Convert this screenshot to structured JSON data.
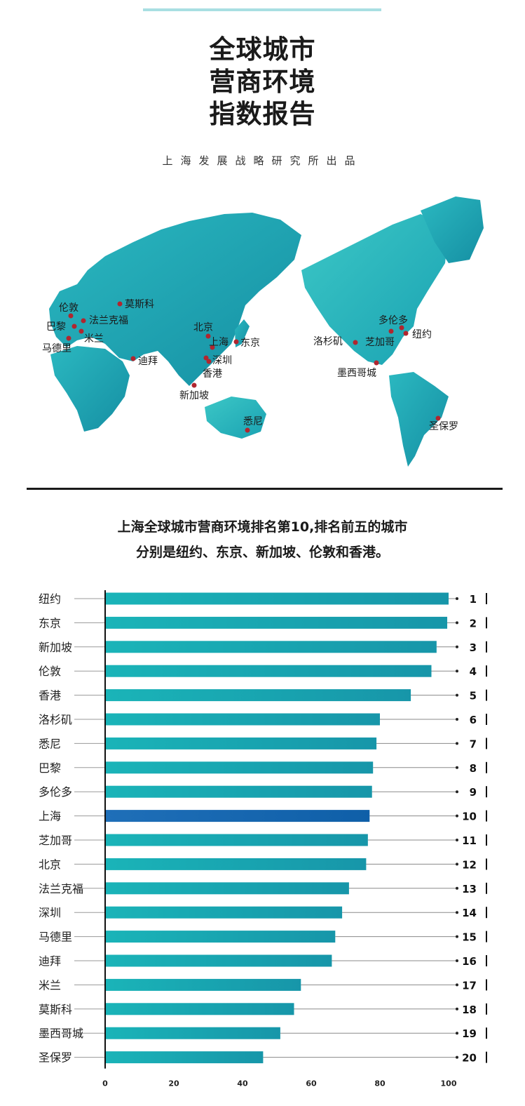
{
  "header": {
    "title_lines": [
      "全球城市",
      "营商环境",
      "指数报告"
    ],
    "subtitle": "上海发展战略研究所出品"
  },
  "map": {
    "cities": [
      {
        "name": "伦敦",
        "label_side": "above"
      },
      {
        "name": "巴黎",
        "label_side": "left"
      },
      {
        "name": "法兰克福",
        "label_side": "right"
      },
      {
        "name": "米兰",
        "label_side": "right"
      },
      {
        "name": "马德里",
        "label_side": "below"
      },
      {
        "name": "莫斯科",
        "label_side": "right"
      },
      {
        "name": "迪拜",
        "label_side": "right"
      },
      {
        "name": "北京",
        "label_side": "above"
      },
      {
        "name": "上海",
        "label_side": "right"
      },
      {
        "name": "东京",
        "label_side": "right"
      },
      {
        "name": "深圳",
        "label_side": "right"
      },
      {
        "name": "香港",
        "label_side": "below"
      },
      {
        "name": "新加坡",
        "label_side": "below"
      },
      {
        "name": "悉尼",
        "label_side": "above"
      },
      {
        "name": "洛杉矶",
        "label_side": "left"
      },
      {
        "name": "芝加哥",
        "label_side": "below"
      },
      {
        "name": "多伦多",
        "label_side": "above"
      },
      {
        "name": "纽约",
        "label_side": "right"
      },
      {
        "name": "墨西哥城",
        "label_side": "below"
      },
      {
        "name": "圣保罗",
        "label_side": "below"
      }
    ],
    "colors": {
      "land": "#1ba3b3",
      "land_light": "#2fc0c4",
      "dot": "#b0262f"
    }
  },
  "headline": {
    "line1": "上海全球城市营商环境排名第10,排名前五的城市",
    "line2": "分别是纽约、东京、新加坡、伦敦和香港。"
  },
  "chart_data": {
    "type": "bar",
    "orientation": "horizontal",
    "categories": [
      "纽约",
      "东京",
      "新加坡",
      "伦敦",
      "香港",
      "洛杉矶",
      "悉尼",
      "巴黎",
      "多伦多",
      "上海",
      "芝加哥",
      "北京",
      "法兰克福",
      "深圳",
      "马德里",
      "迪拜",
      "米兰",
      "莫斯科",
      "墨西哥城",
      "圣保罗"
    ],
    "values": [
      100,
      99.6,
      96.5,
      95,
      89,
      80,
      79,
      78,
      77.7,
      77,
      76.5,
      76,
      71,
      69,
      67,
      66,
      57,
      55,
      51,
      46
    ],
    "ranks": [
      "1",
      "2",
      "3",
      "4",
      "5",
      "6",
      "7",
      "8",
      "9",
      "10",
      "11",
      "12",
      "13",
      "14",
      "15",
      "16",
      "17",
      "18",
      "19",
      "20"
    ],
    "highlight": "上海",
    "xlim": [
      0,
      100
    ],
    "xticks": [
      "0",
      "20",
      "40",
      "60",
      "80",
      "100"
    ],
    "grid": false,
    "colors": {
      "bar": "#1ab4b8",
      "bar_dark": "#1796a9",
      "highlight": "#1f6fb8",
      "highlight_dark": "#0f5fa8"
    }
  }
}
